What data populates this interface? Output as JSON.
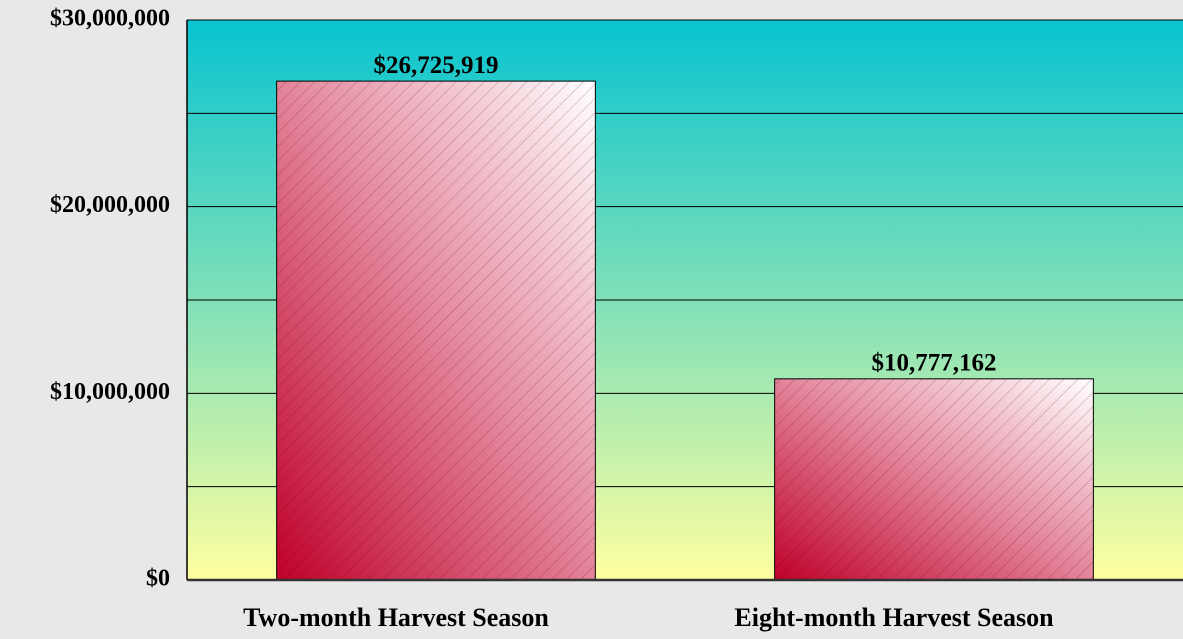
{
  "chart_data": {
    "type": "bar",
    "categories": [
      "Two-month Harvest Season",
      "Eight-month Harvest Season"
    ],
    "values": [
      26725919,
      10777162
    ],
    "value_labels": [
      "$26,725,919",
      "$10,777,162"
    ],
    "color": "#c0002a",
    "ylim": [
      0,
      30000000
    ],
    "yticks": [
      {
        "value": 0,
        "label": "$0"
      },
      {
        "value": 10000000,
        "label": "$10,000,000"
      },
      {
        "value": 20000000,
        "label": "$20,000,000"
      },
      {
        "value": 30000000,
        "label": "$30,000,000"
      }
    ],
    "minor_yticks": [
      5000000,
      15000000,
      25000000
    ],
    "grid": true
  }
}
